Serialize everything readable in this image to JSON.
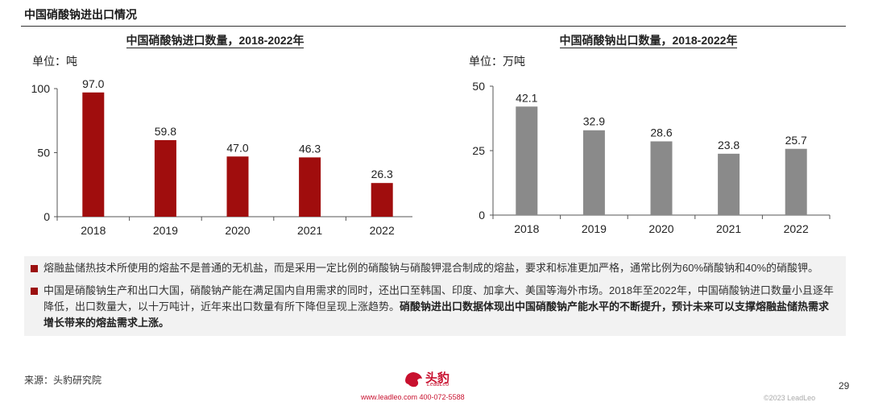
{
  "page": {
    "section_title": "中国硝酸钠进出口情况",
    "source": "来源：头豹研究院",
    "page_number": "29",
    "copyright": "©2023 LeadLeo",
    "logo_text": "头豹",
    "logo_sub": "LeadLeo",
    "contact": "www.leadleo.com   400-072-5588",
    "bullets": [
      {
        "text": "熔融盐储热技术所使用的熔盐不是普通的无机盐，而是采用一定比例的硝酸钠与硝酸钾混合制成的熔盐，要求和标准更加严格，通常比例为60%硝酸钠和40%的硝酸钾。",
        "bold": ""
      },
      {
        "text": "中国是硝酸钠生产和出口大国，硝酸钠产能在满足国内自用需求的同时，还出口至韩国、印度、加拿大、美国等海外市场。2018年至2022年，中国硝酸钠进口数量小且逐年降低，出口数量大，以十万吨计，近年来出口数量有所下降但呈现上涨趋势。",
        "bold": "硝酸钠进出口数据体现出中国硝酸钠产能水平的不断提升，预计未来可以支撑熔融盐储热需求增长带来的熔盐需求上涨。"
      }
    ]
  },
  "chart_data": [
    {
      "type": "bar",
      "title": "中国硝酸钠进口数量，2018-2022年",
      "unit": "单位：吨",
      "categories": [
        "2018",
        "2019",
        "2020",
        "2021",
        "2022"
      ],
      "values": [
        97.0,
        59.8,
        47.0,
        46.3,
        26.3
      ],
      "value_labels": [
        "97.0",
        "59.8",
        "47.0",
        "46.3",
        "26.3"
      ],
      "ylim": [
        0,
        100
      ],
      "yticks": [
        0,
        50,
        100
      ],
      "color": "#a00d0d",
      "grid": false
    },
    {
      "type": "bar",
      "title": "中国硝酸钠出口数量，2018-2022年",
      "unit": "单位：万吨",
      "categories": [
        "2018",
        "2019",
        "2020",
        "2021",
        "2022"
      ],
      "values": [
        42.1,
        32.9,
        28.6,
        23.8,
        25.7
      ],
      "value_labels": [
        "42.1",
        "32.9",
        "28.6",
        "23.8",
        "25.7"
      ],
      "ylim": [
        0,
        50
      ],
      "yticks": [
        0,
        25,
        50
      ],
      "color": "#8a8a8a",
      "grid": false
    }
  ]
}
